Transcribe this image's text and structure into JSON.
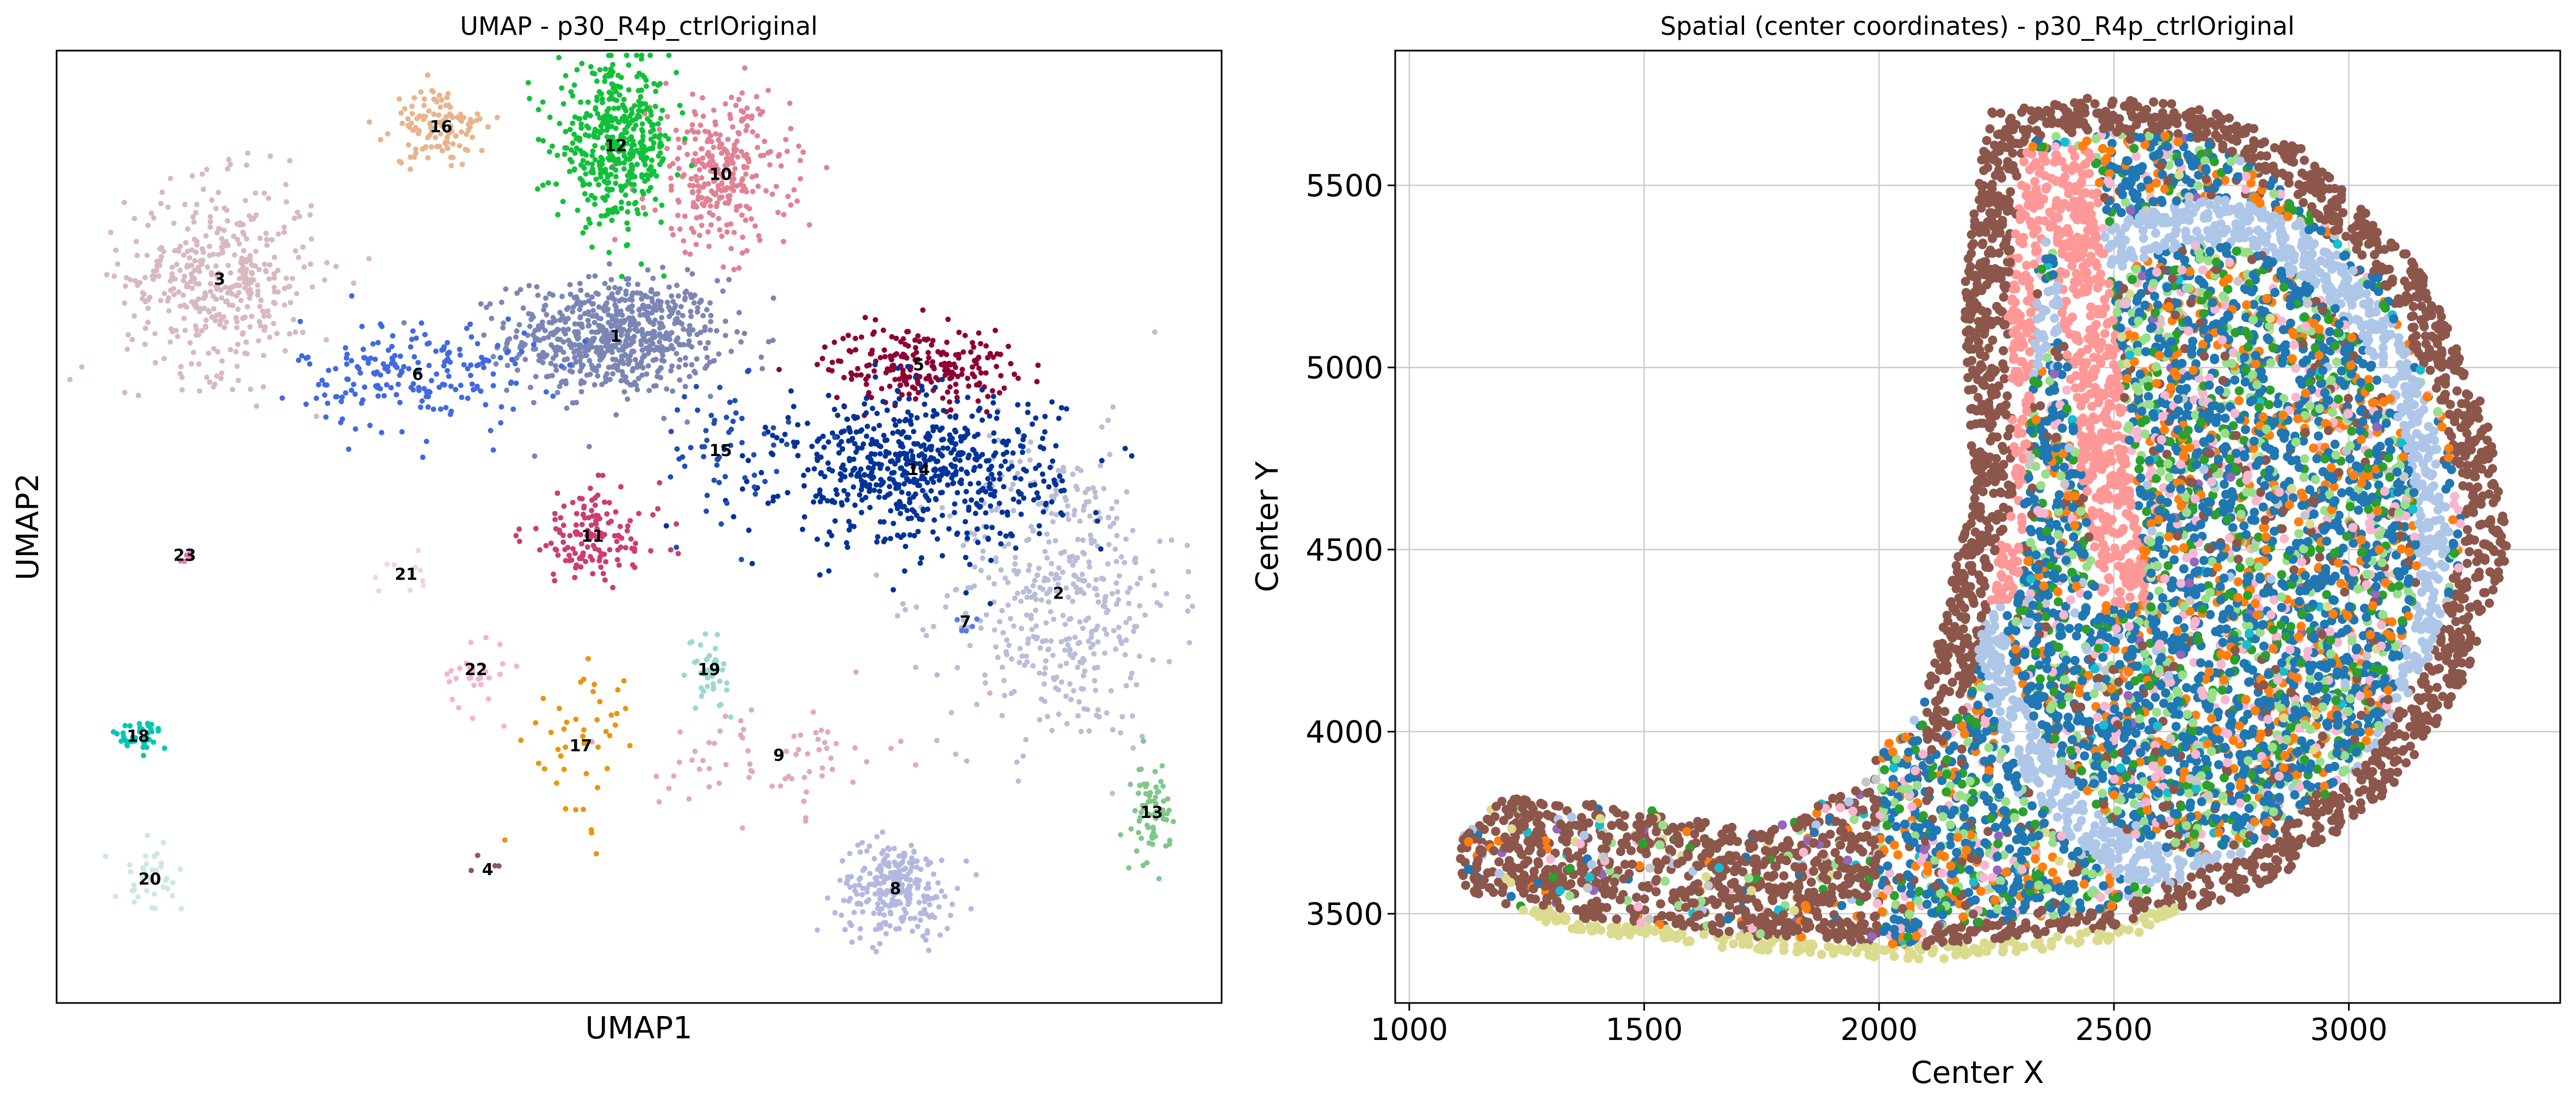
{
  "chart_data": [
    {
      "type": "scatter",
      "title": "UMAP - p30_R4p_ctrlOriginal",
      "xlabel": "UMAP1",
      "ylabel": "UMAP2",
      "xticks": [],
      "yticks": [],
      "grid": false,
      "legend": "none",
      "clusters": [
        {
          "label": "1",
          "color": "#7b86b4",
          "x": 0.48,
          "y": 0.7,
          "n": 700
        },
        {
          "label": "2",
          "color": "#b9bdd7",
          "x": 0.86,
          "y": 0.43,
          "n": 450
        },
        {
          "label": "3",
          "color": "#d7b9be",
          "x": 0.14,
          "y": 0.76,
          "n": 420
        },
        {
          "label": "4",
          "color": "#8c5a5a",
          "x": 0.37,
          "y": 0.14,
          "n": 4
        },
        {
          "label": "5",
          "color": "#8e0033",
          "x": 0.74,
          "y": 0.67,
          "n": 220
        },
        {
          "label": "6",
          "color": "#4169e1",
          "x": 0.31,
          "y": 0.66,
          "n": 200
        },
        {
          "label": "7",
          "color": "#5a78e6",
          "x": 0.78,
          "y": 0.4,
          "n": 6
        },
        {
          "label": "8",
          "color": "#b3b8e0",
          "x": 0.72,
          "y": 0.12,
          "n": 260
        },
        {
          "label": "9",
          "color": "#e0aab8",
          "x": 0.62,
          "y": 0.26,
          "n": 70
        },
        {
          "label": "10",
          "color": "#e08294",
          "x": 0.57,
          "y": 0.87,
          "n": 300
        },
        {
          "label": "11",
          "color": "#cc3d70",
          "x": 0.46,
          "y": 0.49,
          "n": 140
        },
        {
          "label": "12",
          "color": "#12c13a",
          "x": 0.48,
          "y": 0.9,
          "n": 450
        },
        {
          "label": "13",
          "color": "#7fc88a",
          "x": 0.94,
          "y": 0.2,
          "n": 70
        },
        {
          "label": "14",
          "color": "#003399",
          "x": 0.74,
          "y": 0.56,
          "n": 650
        },
        {
          "label": "15",
          "color": "#1f4fb4",
          "x": 0.57,
          "y": 0.58,
          "n": 60
        },
        {
          "label": "16",
          "color": "#e8b48c",
          "x": 0.33,
          "y": 0.92,
          "n": 120
        },
        {
          "label": "17",
          "color": "#e8960a",
          "x": 0.45,
          "y": 0.27,
          "n": 45
        },
        {
          "label": "18",
          "color": "#00c8b4",
          "x": 0.07,
          "y": 0.28,
          "n": 40
        },
        {
          "label": "19",
          "color": "#9ad8d0",
          "x": 0.56,
          "y": 0.35,
          "n": 40
        },
        {
          "label": "20",
          "color": "#cde8e0",
          "x": 0.08,
          "y": 0.13,
          "n": 40
        },
        {
          "label": "21",
          "color": "#f0d6dc",
          "x": 0.3,
          "y": 0.45,
          "n": 10
        },
        {
          "label": "22",
          "color": "#f0b4d2",
          "x": 0.36,
          "y": 0.35,
          "n": 30
        },
        {
          "label": "23",
          "color": "#e678b4",
          "x": 0.11,
          "y": 0.47,
          "n": 6
        }
      ]
    },
    {
      "type": "scatter",
      "title": "Spatial (center coordinates) - p30_R4p_ctrlOriginal",
      "xlabel": "Center X",
      "ylabel": "Center Y",
      "xlim": [
        970,
        3450
      ],
      "ylim": [
        3255,
        5870
      ],
      "xticks": [
        1000,
        1500,
        2000,
        2500,
        3000
      ],
      "yticks": [
        3500,
        4000,
        4500,
        5000,
        5500
      ],
      "grid": true,
      "legend": "none",
      "palette": [
        "#1f77b4",
        "#ff7f0e",
        "#2ca02c",
        "#8c564b",
        "#aec7e8",
        "#98df8a",
        "#f7b6d2",
        "#17becf",
        "#9467bd",
        "#dbdb8d",
        "#c7c7c7"
      ],
      "regions": {
        "outer_band": "#8c564b",
        "inner_ring": "#aec7e8",
        "vertical_band": "#ff9896",
        "bottom_edge": "#dbdb8d"
      }
    }
  ]
}
